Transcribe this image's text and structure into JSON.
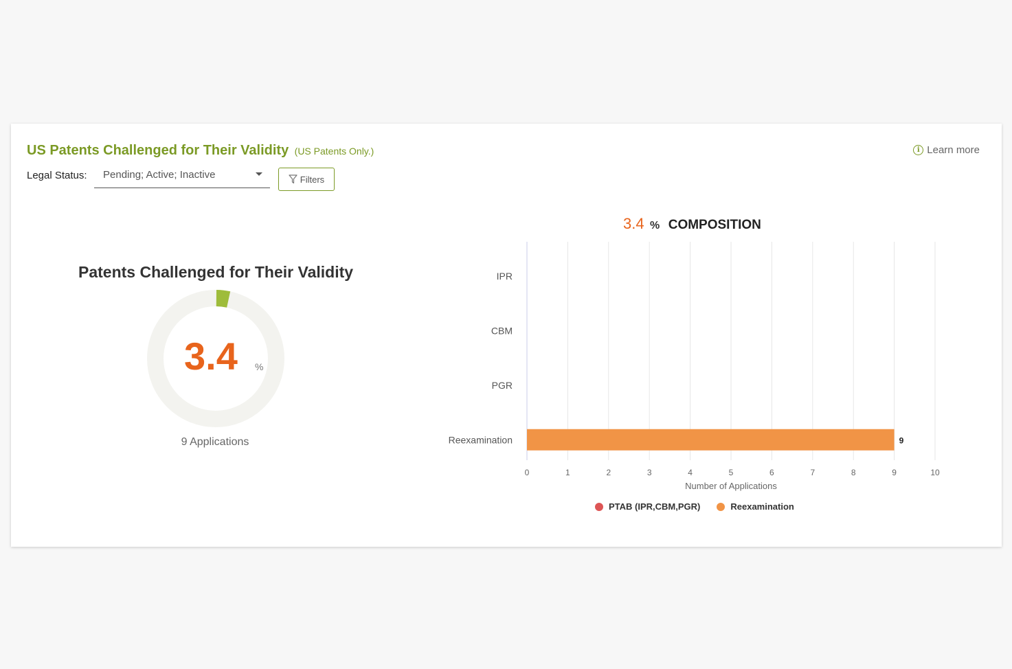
{
  "header": {
    "title": "US Patents Challenged for Their Validity",
    "subtitle": "(US Patents Only.)",
    "learn_more": "Learn more"
  },
  "filters": {
    "legal_status_label": "Legal Status:",
    "legal_status_value": "Pending; Active; Inactive",
    "filters_button": "Filters"
  },
  "summary": {
    "title": "Patents Challenged for Their Validity",
    "value": "3.4",
    "unit": "%",
    "applications": "9 Applications",
    "fraction": 0.034
  },
  "composition": {
    "value": "3.4",
    "unit": "%",
    "label": "COMPOSITION"
  },
  "colors": {
    "accent_green": "#7b9a25",
    "orange": "#e8641c",
    "bar_orange": "#f19446",
    "ptab_red": "#dd5555",
    "donut_track": "#f3f3ef",
    "donut_fill": "#9ebc3b"
  },
  "icons": {
    "info": "info-circle-icon",
    "filter": "funnel-icon",
    "dropdown": "caret-down-icon"
  },
  "chart_data": {
    "type": "bar",
    "orientation": "horizontal",
    "categories": [
      "IPR",
      "CBM",
      "PGR",
      "Reexamination"
    ],
    "series": [
      {
        "name": "PTAB (IPR,CBM,PGR)",
        "values": [
          0,
          0,
          0,
          0
        ],
        "color": "#dd5555"
      },
      {
        "name": "Reexamination",
        "values": [
          0,
          0,
          0,
          9
        ],
        "color": "#f19446"
      }
    ],
    "data_labels": [
      "",
      "",
      "",
      "9"
    ],
    "xlabel": "Number of Applications",
    "ylabel": "",
    "xlim": [
      0,
      10
    ],
    "xticks": [
      "0",
      "1",
      "2",
      "3",
      "4",
      "5",
      "6",
      "7",
      "8",
      "9",
      "10"
    ],
    "grid": "vertical",
    "legend": "bottom"
  }
}
